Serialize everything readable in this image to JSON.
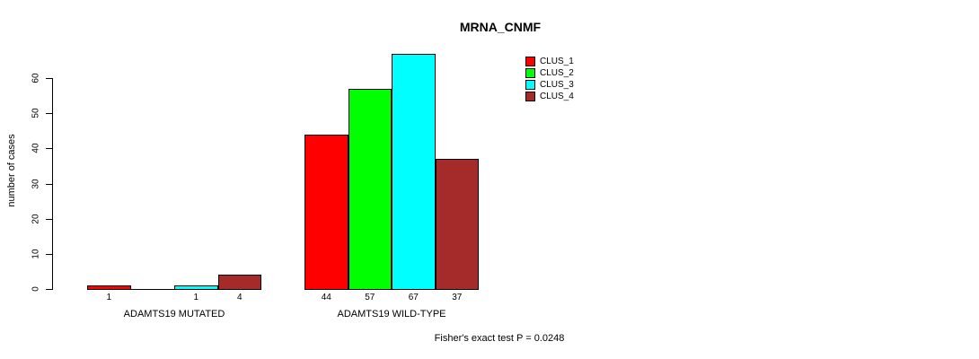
{
  "chart_data": {
    "type": "bar",
    "title": "MRNA_CNMF",
    "xlabel": "",
    "ylabel": "number of cases",
    "ylim": [
      0,
      60
    ],
    "yticks": [
      0,
      10,
      20,
      30,
      40,
      50,
      60
    ],
    "grid": false,
    "legend_position": "top-right",
    "categories": [
      "ADAMTS19 MUTATED",
      "ADAMTS19 WILD-TYPE"
    ],
    "series": [
      {
        "name": "CLUS_1",
        "color": "#ff0000",
        "values": [
          1,
          44
        ]
      },
      {
        "name": "CLUS_2",
        "color": "#00ff00",
        "values": [
          0,
          57
        ]
      },
      {
        "name": "CLUS_3",
        "color": "#00ffff",
        "values": [
          1,
          67
        ]
      },
      {
        "name": "CLUS_4",
        "color": "#a52a2a",
        "values": [
          4,
          37
        ]
      }
    ],
    "bar_labels": [
      [
        "1",
        "",
        "1",
        "4"
      ],
      [
        "44",
        "57",
        "67",
        "37"
      ]
    ],
    "annotation": "Fisher's exact test P = 0.0248"
  }
}
